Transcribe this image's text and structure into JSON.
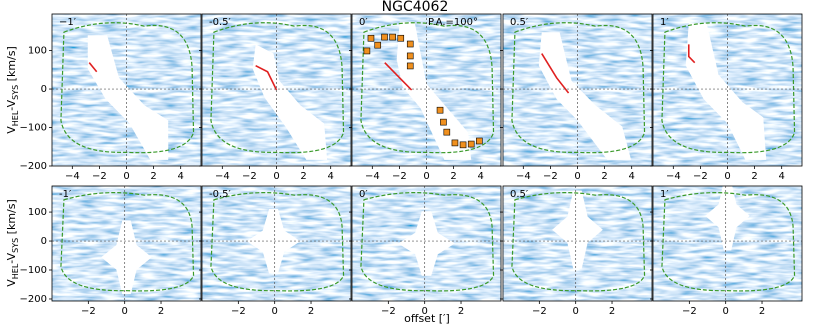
{
  "title": "NGC4062",
  "xlabel": "offset [′]",
  "ylabel": [
    "V",
    "HEL",
    "-V",
    "SYS",
    " [km/s]"
  ],
  "chart_data": [
    {
      "type": "heatmap",
      "title": "−1′",
      "xlim": [
        -5.5,
        5.5
      ],
      "ylim": [
        -200,
        195
      ],
      "xticks": [
        {
          "value": -4,
          "label": "−4"
        },
        {
          "value": -2,
          "label": "−2"
        },
        0,
        2,
        4
      ],
      "yticks": [
        {
          "value": -200,
          "label": "−200"
        },
        {
          "value": -100,
          "label": "−100"
        },
        0,
        100
      ],
      "zero_lines": true
    },
    {
      "type": "heatmap",
      "title": "-0.5′",
      "xlim": [
        -5.5,
        5.5
      ],
      "ylim": [
        -200,
        195
      ],
      "xticks": [
        {
          "value": -4,
          "label": "−4"
        },
        {
          "value": -2,
          "label": "−2"
        },
        0,
        2,
        4
      ],
      "yticks": [
        -200,
        -100,
        0,
        100
      ],
      "zero_lines": true
    },
    {
      "type": "heatmap",
      "title": "0′",
      "annotation": "P.A.=100°",
      "xlim": [
        -5.5,
        5.5
      ],
      "ylim": [
        -200,
        195
      ],
      "xticks": [
        {
          "value": -4,
          "label": "−4"
        },
        {
          "value": -2,
          "label": "−2"
        },
        0,
        2,
        4
      ],
      "yticks": [
        -200,
        -100,
        0,
        100
      ],
      "zero_lines": true,
      "points": {
        "color": "#f0901e",
        "x": [
          -4.1,
          -3.6,
          -3.1,
          -2.5,
          -1.9,
          -1.2,
          -4.4,
          -1.2,
          -1.2,
          1.0,
          1.25,
          1.5,
          2.1,
          2.7,
          3.3,
          3.9
        ],
        "y": [
          132,
          114,
          135,
          135,
          132,
          117,
          99,
          86,
          60,
          -55,
          -86,
          -112,
          -140,
          -145,
          -143,
          -135
        ]
      }
    },
    {
      "type": "heatmap",
      "title": "0.5′",
      "xlim": [
        -5.5,
        5.5
      ],
      "ylim": [
        -200,
        195
      ],
      "xticks": [
        {
          "value": -4,
          "label": "−4"
        },
        {
          "value": -2,
          "label": "−2"
        },
        0,
        2,
        4
      ],
      "yticks": [
        -200,
        -100,
        0,
        100
      ],
      "zero_lines": true
    },
    {
      "type": "heatmap",
      "title": "1′",
      "xlim": [
        -5.5,
        5.5
      ],
      "ylim": [
        -200,
        195
      ],
      "xticks": [
        {
          "value": -4,
          "label": "−4"
        },
        {
          "value": -2,
          "label": "−2"
        },
        0,
        2,
        4
      ],
      "yticks": [
        -200,
        -100,
        0,
        100
      ],
      "zero_lines": true
    },
    {
      "type": "heatmap",
      "title": "-1′",
      "xlim": [
        -4,
        4.2
      ],
      "ylim": [
        -207,
        190
      ],
      "xticks": [
        {
          "value": -2,
          "label": "−2"
        },
        0,
        2
      ],
      "yticks": [
        {
          "value": -200,
          "label": "−200"
        },
        {
          "value": -100,
          "label": "−100"
        },
        0,
        100
      ],
      "zero_lines": true
    },
    {
      "type": "heatmap",
      "title": "-0.5′",
      "xlim": [
        -4,
        4.2
      ],
      "ylim": [
        -207,
        190
      ],
      "xticks": [
        {
          "value": -2,
          "label": "−2"
        },
        0,
        2
      ],
      "yticks": [
        -200,
        -100,
        0,
        100
      ],
      "zero_lines": true
    },
    {
      "type": "heatmap",
      "title": "0′",
      "xlim": [
        -4,
        4.2
      ],
      "ylim": [
        -207,
        190
      ],
      "xticks": [
        {
          "value": -2,
          "label": "−2"
        },
        0,
        2
      ],
      "yticks": [
        -200,
        -100,
        0,
        100
      ],
      "zero_lines": true
    },
    {
      "type": "heatmap",
      "title": "0.5′",
      "xlim": [
        -4,
        4.2
      ],
      "ylim": [
        -207,
        190
      ],
      "xticks": [
        {
          "value": -2,
          "label": "−2"
        },
        0,
        2
      ],
      "yticks": [
        -200,
        -100,
        0,
        100
      ],
      "zero_lines": true
    },
    {
      "type": "heatmap",
      "title": "1′",
      "xlim": [
        -4,
        4.2
      ],
      "ylim": [
        -207,
        190
      ],
      "xticks": [
        {
          "value": -2,
          "label": "−2"
        },
        0,
        2
      ],
      "yticks": [
        -200,
        -100,
        0,
        100
      ],
      "zero_lines": true
    }
  ]
}
